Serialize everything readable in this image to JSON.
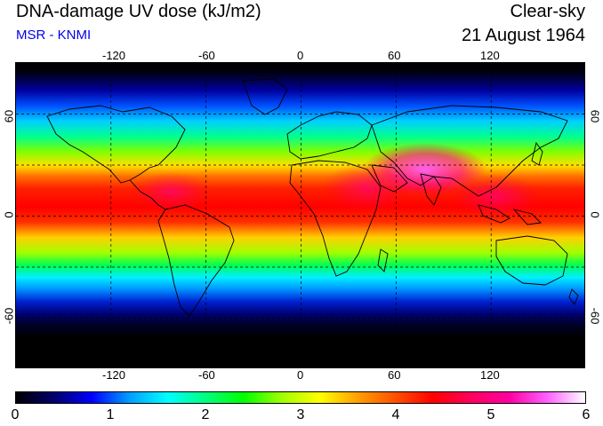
{
  "header": {
    "title": "DNA-damage UV dose (kJ/m2)",
    "subtitle": "MSR - KNMI",
    "condition": "Clear-sky",
    "date": "21 August 1964"
  },
  "map": {
    "lon_labels": [
      "-120",
      "-60",
      "0",
      "60",
      "120"
    ],
    "lat_labels_left": [
      "60",
      "0",
      "-60"
    ],
    "lat_labels_right": [
      "60",
      "0",
      "-60"
    ],
    "lon_range": [
      -180,
      180
    ],
    "lat_range": [
      -90,
      90
    ],
    "graticule": "dashed"
  },
  "colorbar": {
    "labels": [
      "0",
      "1",
      "2",
      "3",
      "4",
      "5",
      "6"
    ],
    "range": [
      0,
      6
    ],
    "colors": [
      "#000000",
      "#00006e",
      "#0000ff",
      "#00a0ff",
      "#00ffff",
      "#00ff80",
      "#00ff00",
      "#a0ff00",
      "#ffff00",
      "#ffa000",
      "#ff5000",
      "#ff0000",
      "#ff0060",
      "#ff00a0",
      "#ff60ff",
      "#ffffff"
    ]
  }
}
